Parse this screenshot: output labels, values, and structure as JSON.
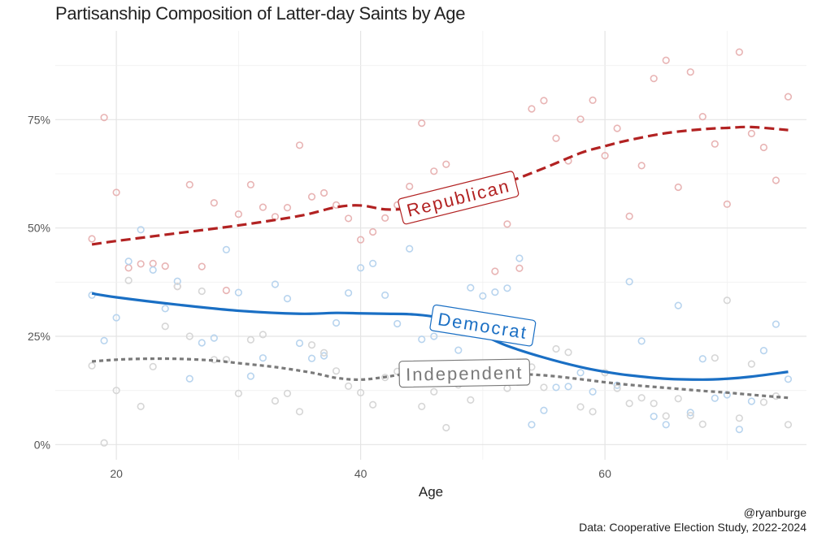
{
  "chart_data": {
    "type": "scatter",
    "title": "Partisanship Composition of Latter-day Saints by Age",
    "xlabel": "Age",
    "ylabel": "",
    "xlim": [
      15,
      76.5
    ],
    "ylim": [
      -3.5,
      95.5
    ],
    "x_ticks": [
      20,
      40,
      60
    ],
    "y_ticks": [
      0,
      25,
      50,
      75
    ],
    "y_tick_labels": [
      "0%",
      "25%",
      "50%",
      "75%"
    ],
    "grid": true,
    "series": [
      {
        "name": "Republican",
        "color": "#b22222",
        "point_color": "#e8b4b4",
        "line_style": "dashed",
        "points": [
          [
            18,
            47.5
          ],
          [
            19,
            75.5
          ],
          [
            20,
            58.2
          ],
          [
            21,
            40.8
          ],
          [
            22,
            41.7
          ],
          [
            23,
            41.8
          ],
          [
            24,
            41.2
          ],
          [
            25,
            36.5
          ],
          [
            26,
            60
          ],
          [
            27,
            41.1
          ],
          [
            28,
            55.8
          ],
          [
            29,
            35.6
          ],
          [
            30,
            53.2
          ],
          [
            31,
            60
          ],
          [
            32,
            54.8
          ],
          [
            33,
            52.6
          ],
          [
            34,
            54.7
          ],
          [
            35,
            69.1
          ],
          [
            36,
            57.2
          ],
          [
            37,
            58.1
          ],
          [
            38,
            55.3
          ],
          [
            39,
            52.2
          ],
          [
            40,
            47.3
          ],
          [
            41,
            49.1
          ],
          [
            42,
            52.3
          ],
          [
            43,
            55.3
          ],
          [
            44,
            59.6
          ],
          [
            45,
            74.2
          ],
          [
            46,
            63.1
          ],
          [
            47,
            64.7
          ],
          [
            48,
            56.1
          ],
          [
            49,
            58.4
          ],
          [
            50,
            56.5
          ],
          [
            51,
            40
          ],
          [
            52,
            50.9
          ],
          [
            53,
            40.7
          ],
          [
            54,
            77.5
          ],
          [
            55,
            79.4
          ],
          [
            56,
            70.7
          ],
          [
            57,
            65.5
          ],
          [
            58,
            75.1
          ],
          [
            59,
            79.5
          ],
          [
            60,
            66.7
          ],
          [
            61,
            73
          ],
          [
            62,
            52.7
          ],
          [
            63,
            64.4
          ],
          [
            64,
            84.5
          ],
          [
            65,
            88.7
          ],
          [
            66,
            59.4
          ],
          [
            67,
            86
          ],
          [
            68,
            75.7
          ],
          [
            69,
            69.4
          ],
          [
            70,
            55.5
          ],
          [
            71,
            90.6
          ],
          [
            72,
            71.8
          ],
          [
            73,
            68.6
          ],
          [
            74,
            61
          ],
          [
            75,
            80.3
          ]
        ],
        "trend": [
          [
            18,
            46.2
          ],
          [
            20,
            47
          ],
          [
            25,
            48.8
          ],
          [
            30,
            50.6
          ],
          [
            35,
            52.8
          ],
          [
            38,
            54.8
          ],
          [
            40,
            55.2
          ],
          [
            42,
            54.3
          ],
          [
            44,
            54.6
          ],
          [
            46,
            56.4
          ],
          [
            48,
            57.8
          ],
          [
            50,
            59.2
          ],
          [
            52,
            60.6
          ],
          [
            55,
            63.8
          ],
          [
            58,
            67.3
          ],
          [
            60,
            68.9
          ],
          [
            62,
            70.3
          ],
          [
            65,
            71.9
          ],
          [
            68,
            72.8
          ],
          [
            70,
            73.1
          ],
          [
            72,
            73.3
          ],
          [
            75,
            72.6
          ]
        ]
      },
      {
        "name": "Democrat",
        "color": "#1a6fc4",
        "point_color": "#b8d4ee",
        "line_style": "solid",
        "points": [
          [
            18,
            34.5
          ],
          [
            19,
            24
          ],
          [
            20,
            29.3
          ],
          [
            21,
            42.3
          ],
          [
            22,
            49.6
          ],
          [
            23,
            40.3
          ],
          [
            24,
            31.4
          ],
          [
            25,
            37.7
          ],
          [
            26,
            15.2
          ],
          [
            27,
            23.5
          ],
          [
            28,
            24.6
          ],
          [
            29,
            45
          ],
          [
            30,
            35.1
          ],
          [
            31,
            15.8
          ],
          [
            32,
            20
          ],
          [
            33,
            37
          ],
          [
            34,
            33.7
          ],
          [
            35,
            23.4
          ],
          [
            36,
            19.9
          ],
          [
            37,
            20.5
          ],
          [
            38,
            28.1
          ],
          [
            39,
            35
          ],
          [
            40,
            40.8
          ],
          [
            41,
            41.8
          ],
          [
            42,
            34.5
          ],
          [
            43,
            27.9
          ],
          [
            44,
            45.2
          ],
          [
            45,
            24.3
          ],
          [
            46,
            25
          ],
          [
            47,
            29.5
          ],
          [
            48,
            21.8
          ],
          [
            49,
            36.2
          ],
          [
            50,
            34.3
          ],
          [
            51,
            35.2
          ],
          [
            52,
            36.1
          ],
          [
            53,
            43
          ],
          [
            54,
            4.6
          ],
          [
            55,
            7.9
          ],
          [
            56,
            13.2
          ],
          [
            57,
            13.4
          ],
          [
            58,
            16.6
          ],
          [
            59,
            12.2
          ],
          [
            60,
            16.6
          ],
          [
            61,
            13.7
          ],
          [
            62,
            37.6
          ],
          [
            63,
            23.9
          ],
          [
            64,
            6.5
          ],
          [
            65,
            4.6
          ],
          [
            66,
            32.1
          ],
          [
            67,
            7.4
          ],
          [
            68,
            19.8
          ],
          [
            69,
            10.7
          ],
          [
            70,
            11.5
          ],
          [
            71,
            3.5
          ],
          [
            72,
            10
          ],
          [
            73,
            21.7
          ],
          [
            74,
            27.8
          ],
          [
            75,
            15.1
          ]
        ],
        "trend": [
          [
            18,
            34.9
          ],
          [
            20,
            34
          ],
          [
            25,
            32.3
          ],
          [
            30,
            30.9
          ],
          [
            35,
            30.2
          ],
          [
            38,
            30.4
          ],
          [
            40,
            30.3
          ],
          [
            42,
            30.2
          ],
          [
            44,
            30.1
          ],
          [
            46,
            29.5
          ],
          [
            48,
            27.8
          ],
          [
            50,
            25.3
          ],
          [
            52,
            22.8
          ],
          [
            55,
            20.1
          ],
          [
            58,
            17.9
          ],
          [
            60,
            16.8
          ],
          [
            62,
            16
          ],
          [
            65,
            15.2
          ],
          [
            68,
            15
          ],
          [
            70,
            15.2
          ],
          [
            72,
            15.7
          ],
          [
            75,
            16.8
          ]
        ]
      },
      {
        "name": "Independent",
        "color": "#7a7a7a",
        "point_color": "#d6d6d6",
        "line_style": "dotted",
        "points": [
          [
            18,
            18.2
          ],
          [
            19,
            0.4
          ],
          [
            20,
            12.5
          ],
          [
            21,
            37.9
          ],
          [
            22,
            8.8
          ],
          [
            23,
            18
          ],
          [
            24,
            27.3
          ],
          [
            25,
            36.5
          ],
          [
            26,
            25
          ],
          [
            27,
            35.4
          ],
          [
            28,
            19.6
          ],
          [
            29,
            19.6
          ],
          [
            30,
            11.8
          ],
          [
            31,
            24.2
          ],
          [
            32,
            25.4
          ],
          [
            33,
            10.1
          ],
          [
            34,
            11.8
          ],
          [
            35,
            7.6
          ],
          [
            36,
            23
          ],
          [
            37,
            21.2
          ],
          [
            38,
            17
          ],
          [
            39,
            13.5
          ],
          [
            40,
            12
          ],
          [
            41,
            9.2
          ],
          [
            42,
            15.5
          ],
          [
            43,
            16.9
          ],
          [
            44,
            17.2
          ],
          [
            45,
            8.8
          ],
          [
            46,
            12.2
          ],
          [
            47,
            3.9
          ],
          [
            48,
            13.8
          ],
          [
            49,
            10.3
          ],
          [
            50,
            18
          ],
          [
            51,
            15.3
          ],
          [
            52,
            13
          ],
          [
            53,
            16.6
          ],
          [
            54,
            17.9
          ],
          [
            55,
            13.2
          ],
          [
            56,
            22.1
          ],
          [
            57,
            21.3
          ],
          [
            58,
            8.7
          ],
          [
            59,
            7.6
          ],
          [
            60,
            16.6
          ],
          [
            61,
            13
          ],
          [
            62,
            9.5
          ],
          [
            63,
            10.8
          ],
          [
            64,
            9.5
          ],
          [
            65,
            6.6
          ],
          [
            66,
            10.6
          ],
          [
            67,
            6.7
          ],
          [
            68,
            4.7
          ],
          [
            69,
            20
          ],
          [
            70,
            33.3
          ],
          [
            71,
            6.1
          ],
          [
            72,
            18.6
          ],
          [
            73,
            9.8
          ],
          [
            74,
            11.2
          ],
          [
            75,
            4.6
          ]
        ],
        "trend": [
          [
            18,
            19.2
          ],
          [
            20,
            19.6
          ],
          [
            22,
            19.8
          ],
          [
            25,
            19.8
          ],
          [
            28,
            19.4
          ],
          [
            30,
            18.8
          ],
          [
            33,
            17.9
          ],
          [
            36,
            16.6
          ],
          [
            38,
            15.4
          ],
          [
            40,
            15
          ],
          [
            42,
            15.6
          ],
          [
            44,
            16.5
          ],
          [
            46,
            16.9
          ],
          [
            48,
            16.8
          ],
          [
            50,
            16.6
          ],
          [
            52,
            16.4
          ],
          [
            55,
            16
          ],
          [
            58,
            15.1
          ],
          [
            60,
            14.4
          ],
          [
            62,
            13.8
          ],
          [
            65,
            13.1
          ],
          [
            68,
            12.4
          ],
          [
            70,
            12
          ],
          [
            72,
            11.5
          ],
          [
            75,
            10.8
          ]
        ]
      }
    ],
    "labels": [
      {
        "series": "Republican",
        "text": "Republican",
        "x": 48,
        "y": 57,
        "angle": -14
      },
      {
        "series": "Democrat",
        "text": "Democrat",
        "x": 50,
        "y": 27.5,
        "angle": 9
      },
      {
        "series": "Independent",
        "text": "Independent",
        "x": 48.5,
        "y": 16.5,
        "angle": -1
      }
    ],
    "caption": [
      "@ryanburge",
      "Data: Cooperative Election Study, 2022-2024"
    ]
  }
}
